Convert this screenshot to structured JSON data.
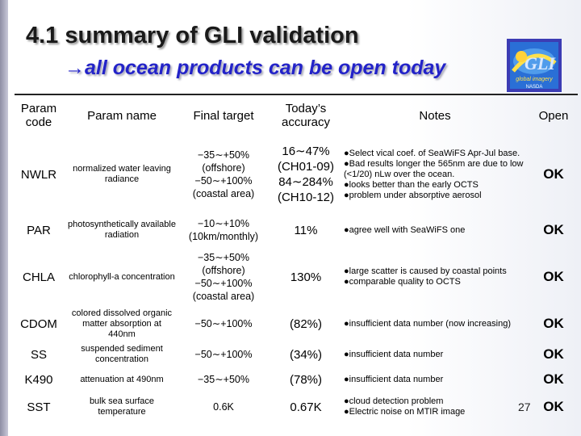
{
  "title": "4.1 summary of GLI validation",
  "subtitle": "all ocean products can be open today",
  "subtitle_arrow": "→",
  "logo": {
    "text": "global imagery",
    "small": "NASDA"
  },
  "headers": {
    "code": "Param code",
    "name": "Param name",
    "target": "Final target",
    "accuracy": "Today’s accuracy",
    "notes": "Notes",
    "open": "Open"
  },
  "rows": [
    {
      "code": "NWLR",
      "name": "normalized water leaving radiance",
      "target": [
        "−35∼+50%",
        "(offshore)",
        "−50∼+100%",
        "(coastal area)"
      ],
      "accuracy": [
        "16∼47%",
        "(CH01-09)",
        "84∼284%",
        "(CH10-12)"
      ],
      "notes": [
        "●Select vical coef. of SeaWiFS Apr-Jul base.",
        "●Bad results longer the 565nm are due to low (<1/20) nLw over the ocean.",
        "●looks better than the early OCTS",
        "●problem under absorptive aerosol"
      ],
      "open": "OK"
    },
    {
      "code": "PAR",
      "name": "photosynthetically available radiation",
      "target": [
        "−10∼+10%",
        "(10km/monthly)"
      ],
      "accuracy": [
        "11%"
      ],
      "notes": [
        "●agree well with SeaWiFS one"
      ],
      "open": "OK"
    },
    {
      "code": "CHLA",
      "name": "chlorophyll-a concentration",
      "target": [
        "−35∼+50%",
        "(offshore)",
        "−50∼+100%",
        "(coastal area)"
      ],
      "accuracy": [
        "130%"
      ],
      "notes": [
        "●large scatter is caused by coastal points",
        "●comparable quality to OCTS"
      ],
      "open": "OK"
    },
    {
      "code": "CDOM",
      "name": "colored dissolved organic matter absorption at 440nm",
      "target": [
        "−50∼+100%"
      ],
      "accuracy": [
        "(82%)"
      ],
      "notes": [
        "●insufficient data number (now increasing)"
      ],
      "open": "OK"
    },
    {
      "code": "SS",
      "name": "suspended sediment concentration",
      "target": [
        "−50∼+100%"
      ],
      "accuracy": [
        "(34%)"
      ],
      "notes": [
        "●insufficient data number"
      ],
      "open": "OK"
    },
    {
      "code": "K490",
      "name": "attenuation at 490nm",
      "target": [
        "−35∼+50%"
      ],
      "accuracy": [
        "(78%)"
      ],
      "notes": [
        "●insufficient data number"
      ],
      "open": "OK"
    },
    {
      "code": "SST",
      "name": "bulk sea surface temperature",
      "target": [
        "0.6K"
      ],
      "accuracy": [
        "0.67K"
      ],
      "notes": [
        "●cloud detection problem",
        "●Electric noise on MTIR image"
      ],
      "open": "OK"
    }
  ],
  "page_number": "27"
}
